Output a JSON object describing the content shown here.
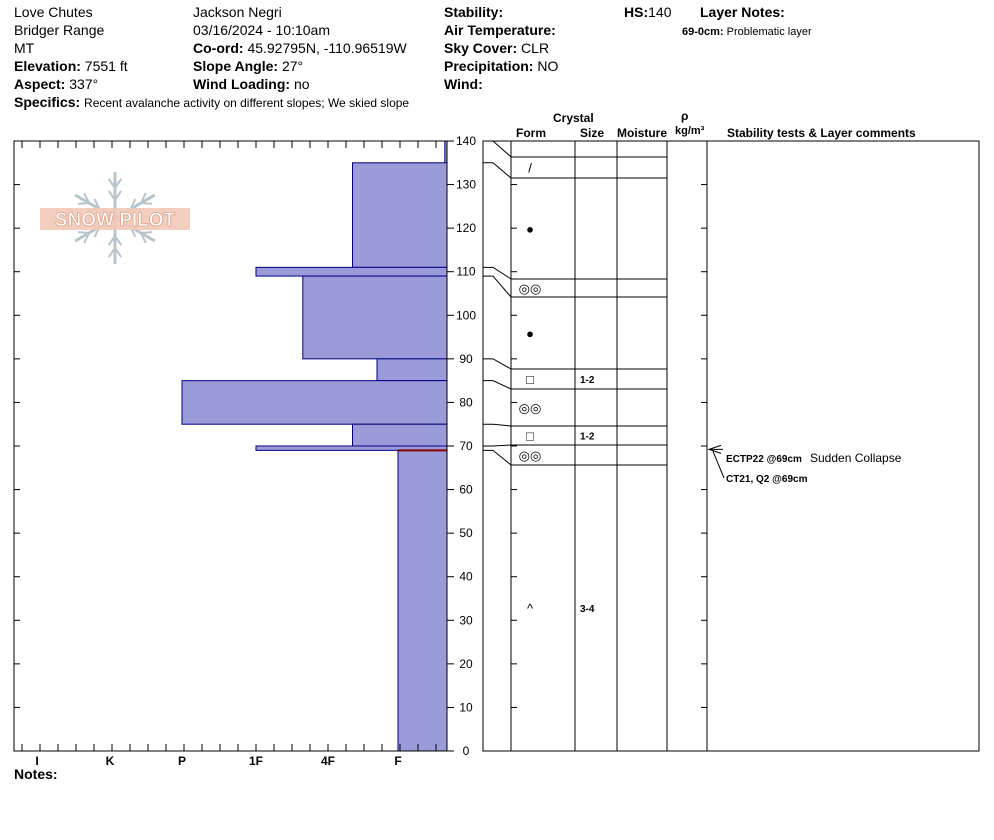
{
  "header": {
    "location": "Love Chutes",
    "range": "Bridger Range",
    "state": "MT",
    "elevation_label": "Elevation:",
    "elevation_value": "7551 ft",
    "aspect_label": "Aspect:",
    "aspect_value": "337°",
    "specifics_label": "Specifics:",
    "specifics_value": "Recent avalanche activity on different slopes; We skied slope",
    "observer": "Jackson Negri",
    "datetime": "03/16/2024 - 10:10am",
    "coord_label": "Co-ord:",
    "coord_value": "45.92795N, -110.96519W",
    "slope_label": "Slope Angle:",
    "slope_value": "27°",
    "wind_loading_label": "Wind Loading:",
    "wind_loading_value": "no",
    "stability_label": "Stability:",
    "air_temp_label": "Air Temperature:",
    "sky_label": "Sky Cover:",
    "sky_value": "CLR",
    "precip_label": "Precipitation:",
    "precip_value": "NO",
    "wind_label": "Wind:",
    "hs_label": "HS:",
    "hs_value": "140",
    "layer_notes_label": "Layer Notes:",
    "layer_note_range": "69-0cm:",
    "layer_note_text": "Problematic layer",
    "notes_label": "Notes:"
  },
  "logo_text": "SNOW PILOT",
  "columns": {
    "crystal": "Crystal",
    "form": "Form",
    "size": "Size",
    "moisture": "Moisture",
    "rho": "ρ",
    "density_unit": "kg/m³",
    "stability": "Stability tests & Layer comments"
  },
  "colors": {
    "hardness_fill": "#9b9bd9",
    "hardness_stroke": "#000080",
    "problem_line": "#8b0000"
  },
  "chart_data": {
    "type": "snow_profile",
    "y_axis": {
      "label": "",
      "unit": "cm",
      "range": [
        0,
        140
      ],
      "ticks": [
        0,
        10,
        20,
        30,
        40,
        50,
        60,
        70,
        80,
        90,
        100,
        110,
        120,
        130,
        140
      ]
    },
    "hardness_scale": [
      "I",
      "K",
      "P",
      "1F",
      "4F",
      "F"
    ],
    "hardness_layers": [
      {
        "top": 140,
        "bottom": 135,
        "hardness": 5.65
      },
      {
        "top": 135,
        "bottom": 111,
        "hardness": 4.35
      },
      {
        "top": 111,
        "bottom": 109,
        "hardness": 3.0
      },
      {
        "top": 109,
        "bottom": 90,
        "hardness": 3.65
      },
      {
        "top": 90,
        "bottom": 85,
        "hardness": 4.7
      },
      {
        "top": 85,
        "bottom": 75,
        "hardness": 2.0
      },
      {
        "top": 75,
        "bottom": 70,
        "hardness": 4.35
      },
      {
        "top": 70,
        "bottom": 69,
        "hardness": 3.0
      },
      {
        "top": 69,
        "bottom": 0,
        "hardness": 5.0
      }
    ],
    "problem_layer_depth": 69,
    "grain_layers": [
      {
        "top": 140,
        "bottom": 135,
        "form": "/",
        "size": ""
      },
      {
        "top": 135,
        "bottom": 111,
        "form": "●",
        "size": ""
      },
      {
        "top": 111,
        "bottom": 109,
        "form": "◎◎",
        "size": ""
      },
      {
        "top": 109,
        "bottom": 90,
        "form": "●",
        "size": ""
      },
      {
        "top": 90,
        "bottom": 85,
        "form": "□",
        "size": "1-2"
      },
      {
        "top": 85,
        "bottom": 75,
        "form": "◎◎",
        "size": ""
      },
      {
        "top": 75,
        "bottom": 70,
        "form": "□",
        "size": "1-2"
      },
      {
        "top": 70,
        "bottom": 69,
        "form": "◎◎",
        "size": ""
      },
      {
        "top": 69,
        "bottom": 0,
        "form": "^",
        "size": "3-4"
      }
    ],
    "tests": [
      {
        "result": "ECTP22 @69cm",
        "comment": "Sudden Collapse"
      },
      {
        "result": "CT21, Q2 @69cm",
        "comment": ""
      }
    ]
  }
}
